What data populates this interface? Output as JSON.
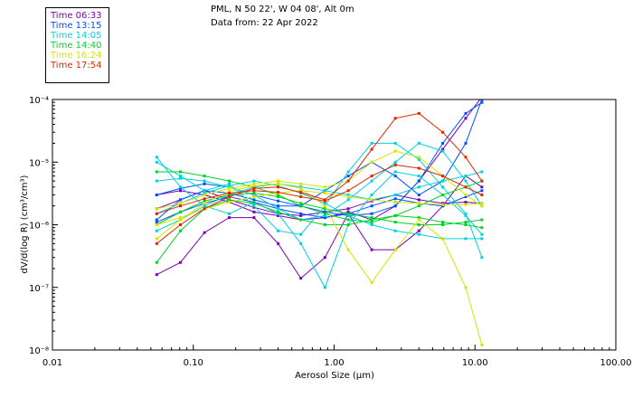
{
  "header": {
    "location": "PML, N 50 22', W 04 08', Alt 0m",
    "date": "Data from: 22 Apr 2022"
  },
  "legend": [
    {
      "label": "Time 06:33",
      "color": "#7b00b4"
    },
    {
      "label": "Time 13:15",
      "color": "#0050ff"
    },
    {
      "label": "Time 14:05",
      "color": "#00d2dc"
    },
    {
      "label": "Time 14:40",
      "color": "#00d228"
    },
    {
      "label": "Time 16:24",
      "color": "#d2e600"
    },
    {
      "label": "Time 17:54",
      "color": "#dc2800"
    }
  ],
  "chart_data": {
    "type": "line",
    "xlabel": "Aerosol Size (μm)",
    "ylabel": "dV/d(log R) (cm³/cm³)",
    "x_scale": "log",
    "y_scale": "log",
    "xlim": [
      0.01,
      100
    ],
    "ylim": [
      1e-08,
      0.0001
    ],
    "x_ticks": [
      {
        "value": 0.01,
        "label": "0.01"
      },
      {
        "value": 0.1,
        "label": "0.10"
      },
      {
        "value": 1,
        "label": "1.00"
      },
      {
        "value": 10,
        "label": "10.00"
      },
      {
        "value": 100,
        "label": "100.00"
      }
    ],
    "y_ticks": [
      {
        "value": 0.0001,
        "label": "10⁻⁴"
      },
      {
        "value": 1e-05,
        "label": "10⁻⁵"
      },
      {
        "value": 1e-06,
        "label": "10⁻⁶"
      },
      {
        "value": 1e-07,
        "label": "10⁻⁷"
      },
      {
        "value": 1e-08,
        "label": "10⁻⁸"
      }
    ],
    "x": [
      0.055,
      0.081,
      0.12,
      0.18,
      0.27,
      0.4,
      0.58,
      0.86,
      1.26,
      1.85,
      2.72,
      4.0,
      5.9,
      8.6,
      11.2
    ],
    "series": [
      {
        "color": "#7b00b4",
        "values": [
          1.6e-07,
          2.5e-07,
          7.5e-07,
          1.3e-06,
          1.3e-06,
          5e-07,
          1.4e-07,
          3e-07,
          1.5e-06,
          4e-07,
          4e-07,
          8e-07,
          2e-06,
          6e-06,
          4e-06
        ]
      },
      {
        "color": "#7b00b4",
        "values": [
          3e-06,
          3.5e-06,
          3e-06,
          2.3e-06,
          1.6e-06,
          1.4e-06,
          1.2e-06,
          1.3e-06,
          1.6e-06,
          1.2e-06,
          2e-06,
          5e-06,
          1.6e-05,
          5e-05,
          0.00011
        ]
      },
      {
        "color": "#7b00b4",
        "values": [
          1.8e-06,
          2.5e-06,
          3.5e-06,
          2.5e-06,
          1.9e-06,
          1.5e-06,
          1.4e-06,
          1.6e-06,
          1.8e-06,
          2.4e-06,
          3e-06,
          2.5e-06,
          2.2e-06,
          2.3e-06,
          2.2e-06
        ]
      },
      {
        "color": "#0050ff",
        "values": [
          1.2e-06,
          2.5e-06,
          3.5e-06,
          3.2e-06,
          2.5e-06,
          2e-06,
          2e-06,
          3.5e-06,
          6e-06,
          1e-05,
          6e-06,
          3e-06,
          5e-06,
          2e-05,
          0.0001
        ]
      },
      {
        "color": "#0050ff",
        "values": [
          3e-06,
          3.8e-06,
          4.5e-06,
          4e-06,
          3e-06,
          2.4e-06,
          2e-06,
          1.6e-06,
          1.4e-06,
          1.5e-06,
          2e-06,
          5e-06,
          2e-05,
          6e-05,
          9e-05
        ]
      },
      {
        "color": "#0050ff",
        "values": [
          1.1e-06,
          1.6e-06,
          2.2e-06,
          2.8e-06,
          2.3e-06,
          1.8e-06,
          1.5e-06,
          1.3e-06,
          1.5e-06,
          2e-06,
          2.6e-06,
          2.2e-06,
          2e-06,
          2.8e-06,
          3.5e-06
        ]
      },
      {
        "color": "#00d2dc",
        "values": [
          1.2e-05,
          4e-06,
          2e-06,
          1.5e-06,
          2.3e-06,
          1.5e-06,
          5e-07,
          1e-07,
          1e-06,
          3e-06,
          7e-06,
          6e-06,
          3e-06,
          1.4e-06,
          7e-07
        ]
      },
      {
        "color": "#00d2dc",
        "values": [
          1e-05,
          6e-06,
          3.5e-06,
          4.5e-06,
          2e-06,
          8e-07,
          7e-07,
          2e-06,
          7e-06,
          2e-05,
          2e-05,
          1.1e-05,
          4e-06,
          1.5e-06,
          3e-07
        ]
      },
      {
        "color": "#00d2dc",
        "values": [
          5e-06,
          5.5e-06,
          5e-06,
          4e-06,
          3e-06,
          1.8e-06,
          1.2e-06,
          1.4e-06,
          2.5e-06,
          5e-06,
          1e-05,
          2e-05,
          1.5e-05,
          5e-06,
          2e-06
        ]
      },
      {
        "color": "#00d2dc",
        "values": [
          1.5e-06,
          2.2e-06,
          3.2e-06,
          4.2e-06,
          5e-06,
          4.2e-06,
          3.2e-06,
          2.2e-06,
          1.4e-06,
          1e-06,
          8e-07,
          7e-07,
          6e-07,
          6e-07,
          6e-07
        ]
      },
      {
        "color": "#00d2dc",
        "values": [
          8e-07,
          1.2e-06,
          2e-06,
          3e-06,
          4e-06,
          4.5e-06,
          4e-06,
          3.5e-06,
          3e-06,
          2.5e-06,
          3e-06,
          4e-06,
          5e-06,
          6e-06,
          7e-06
        ]
      },
      {
        "color": "#00d228",
        "values": [
          7e-06,
          7e-06,
          6e-06,
          5e-06,
          4e-06,
          3e-06,
          2e-06,
          1.5e-06,
          1.2e-06,
          1.1e-06,
          1.4e-06,
          2e-06,
          3e-06,
          4e-06,
          5e-06
        ]
      },
      {
        "color": "#00d228",
        "values": [
          2.5e-07,
          8e-07,
          1.8e-06,
          2.5e-06,
          2.2e-06,
          1.6e-06,
          1.2e-06,
          1e-06,
          1e-06,
          1.2e-06,
          1.4e-06,
          1.3e-06,
          1.1e-06,
          1e-06,
          9e-07
        ]
      },
      {
        "color": "#00d228",
        "values": [
          1e-06,
          1.6e-06,
          2.4e-06,
          3e-06,
          3.2e-06,
          2.8e-06,
          2.2e-06,
          1.8e-06,
          1.5e-06,
          1.3e-06,
          1.1e-06,
          1e-06,
          1e-06,
          1.1e-06,
          1.2e-06
        ]
      },
      {
        "color": "#d2e600",
        "values": [
          6e-07,
          1.2e-06,
          2.2e-06,
          3.4e-06,
          4.2e-06,
          4.5e-06,
          3.8e-06,
          2e-06,
          4e-07,
          1.2e-07,
          4e-07,
          1.2e-06,
          6e-07,
          1e-07,
          1.2e-08
        ]
      },
      {
        "color": "#d2e600",
        "values": [
          1.8e-06,
          2.2e-06,
          3e-06,
          3.8e-06,
          4.5e-06,
          5e-06,
          4.5e-06,
          4e-06,
          5e-06,
          1e-05,
          1.5e-05,
          1.2e-05,
          6e-06,
          3e-06,
          2e-06
        ]
      },
      {
        "color": "#d2e600",
        "values": [
          1e-06,
          1.3e-06,
          1.8e-06,
          2.3e-06,
          2.8e-06,
          3.2e-06,
          3.5e-06,
          3.2e-06,
          2.8e-06,
          2.5e-06,
          2.3e-06,
          2.2e-06,
          2.1e-06,
          2.1e-06,
          2.2e-06
        ]
      },
      {
        "color": "#dc2800",
        "values": [
          5e-07,
          1e-06,
          1.8e-06,
          2.8e-06,
          3.8e-06,
          4e-06,
          3.3e-06,
          2.5e-06,
          5e-06,
          1.6e-05,
          5e-05,
          6e-05,
          3e-05,
          1.2e-05,
          5e-06
        ]
      },
      {
        "color": "#dc2800",
        "values": [
          1.5e-06,
          2e-06,
          2.6e-06,
          3.2e-06,
          3.5e-06,
          3.3e-06,
          2.8e-06,
          2.4e-06,
          3.5e-06,
          6e-06,
          9e-06,
          8e-06,
          6e-06,
          4e-06,
          3e-06
        ]
      }
    ]
  }
}
